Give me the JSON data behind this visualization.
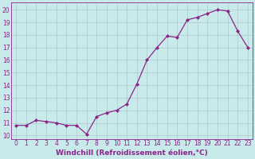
{
  "x": [
    0,
    1,
    2,
    3,
    4,
    5,
    6,
    7,
    8,
    9,
    10,
    11,
    12,
    13,
    14,
    15,
    16,
    17,
    18,
    19,
    20,
    21,
    22,
    23
  ],
  "y": [
    10.8,
    10.8,
    11.2,
    11.1,
    11.0,
    10.8,
    10.8,
    10.1,
    11.5,
    11.8,
    12.0,
    12.5,
    14.1,
    16.0,
    17.0,
    17.9,
    17.8,
    19.2,
    19.4,
    19.7,
    20.0,
    19.9,
    18.3,
    17.0
  ],
  "line_color": "#8B2589",
  "marker": "D",
  "marker_size": 2.0,
  "linewidth": 0.9,
  "xlabel": "Windchill (Refroidissement éolien,°C)",
  "xlabel_fontsize": 6.5,
  "xtick_labels": [
    "0",
    "1",
    "2",
    "3",
    "4",
    "5",
    "6",
    "7",
    "8",
    "9",
    "10",
    "11",
    "12",
    "13",
    "14",
    "15",
    "16",
    "17",
    "18",
    "19",
    "20",
    "21",
    "22",
    "23"
  ],
  "ytick_labels": [
    "10",
    "11",
    "12",
    "13",
    "14",
    "15",
    "16",
    "17",
    "18",
    "19",
    "20"
  ],
  "ytick_values": [
    10,
    11,
    12,
    13,
    14,
    15,
    16,
    17,
    18,
    19,
    20
  ],
  "ylim": [
    9.7,
    20.6
  ],
  "xlim": [
    -0.5,
    23.5
  ],
  "background_color": "#c8eaea",
  "grid_color": "#b0c8c8",
  "tick_fontsize": 5.5,
  "title": ""
}
